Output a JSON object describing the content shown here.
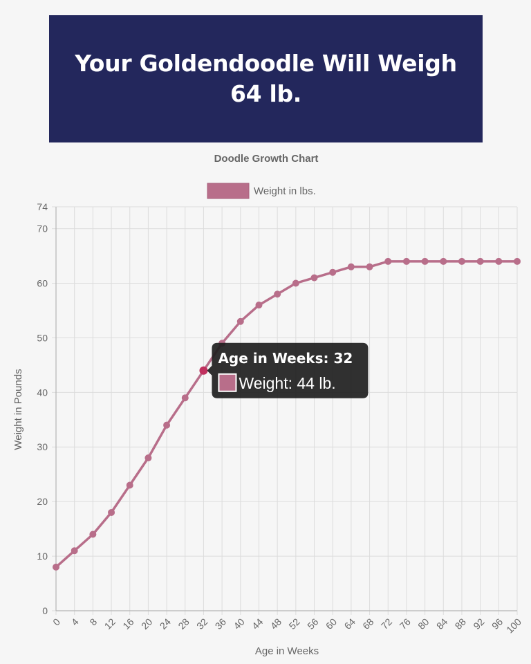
{
  "banner": {
    "title": "Your Goldendoodle Will Weigh 64 lb."
  },
  "colors": {
    "banner_bg": "#23275c",
    "series_line": "#b86e8a",
    "active_point": "#c0305e",
    "tooltip_bg": "#1e1e1e",
    "page_bg": "#f6f6f6"
  },
  "chart_data": {
    "type": "line",
    "title": "Doodle Growth Chart",
    "xlabel": "Age in Weeks",
    "ylabel": "Weight in Pounds",
    "x": [
      0,
      4,
      8,
      12,
      16,
      20,
      24,
      28,
      32,
      36,
      40,
      44,
      48,
      52,
      56,
      60,
      64,
      68,
      72,
      76,
      80,
      84,
      88,
      92,
      96,
      100
    ],
    "series": [
      {
        "name": "Weight in lbs.",
        "values": [
          8,
          11,
          14,
          18,
          23,
          28,
          34,
          39,
          44,
          49,
          53,
          56,
          58,
          60,
          61,
          62,
          63,
          63,
          64,
          64,
          64,
          64,
          64,
          64,
          64,
          64
        ]
      }
    ],
    "xlim": [
      0,
      100
    ],
    "ylim": [
      0,
      74
    ],
    "y_ticks": [
      0,
      10,
      20,
      30,
      40,
      50,
      60,
      70,
      74
    ],
    "grid": true,
    "legend_position": "top",
    "x_tick_rotation_deg": -45,
    "tooltip": {
      "title": "Age in Weeks: 32",
      "body": "Weight: 44 lb.",
      "active_x": 32
    }
  }
}
